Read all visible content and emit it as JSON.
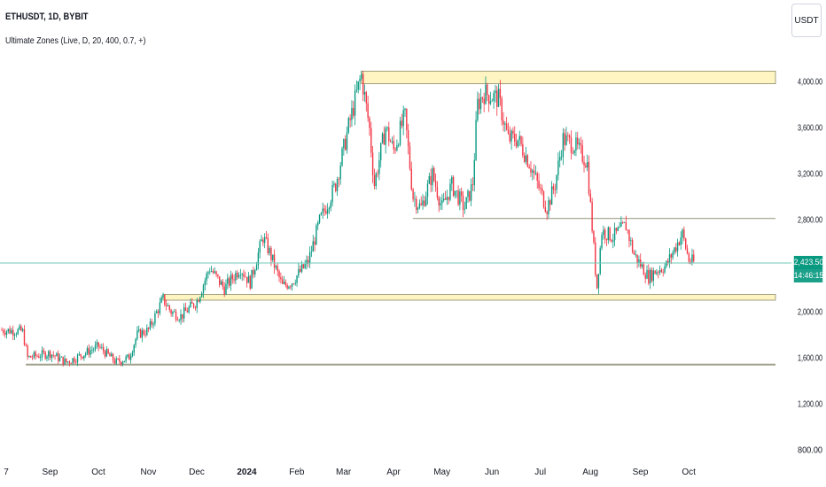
{
  "header": {
    "symbol_line": "ETHUSDT, 1D, BYBIT",
    "indicator_line": "Ultimate Zones (Live, D, 20, 400, 0.7, +)"
  },
  "toolbar": {
    "currency_label": "USDT"
  },
  "last_price": {
    "value": 2423.5,
    "label": "2,423.50",
    "countdown": "14:46:15",
    "color": "#089981"
  },
  "colors": {
    "up": "#089981",
    "down": "#f23645",
    "zone_fill": "#fff5c2",
    "zone_border": "#8a8a6a",
    "line": "#a09f8a",
    "price_line": "#6fc9b8"
  },
  "chart_data": {
    "type": "candlestick",
    "symbol": "ETHUSDT",
    "interval": "1D",
    "exchange": "BYBIT",
    "x_labels": [
      "7",
      "Sep",
      "Oct",
      "Nov",
      "Dec",
      "2024",
      "Feb",
      "Mar",
      "Apr",
      "May",
      "Jun",
      "Jul",
      "Aug",
      "Sep",
      "Oct"
    ],
    "y_ticks": [
      800,
      1200,
      1600,
      2000,
      2400,
      2800,
      3200,
      3600,
      4000
    ],
    "y_tick_labels": [
      "800.00",
      "1,200.00",
      "1,600.00",
      "2,000.00",
      "2,400.00",
      "2,800.00",
      "3,200.00",
      "3,600.00",
      "4,000.00"
    ],
    "ylim": [
      740,
      4230
    ],
    "zones": [
      {
        "type": "box",
        "start": "2024-03-12",
        "top": 4090,
        "bottom": 3980
      },
      {
        "type": "box",
        "start": "2023-11-10",
        "top": 2150,
        "bottom": 2100
      },
      {
        "type": "line",
        "start": "2024-04-13",
        "price": 2810
      },
      {
        "type": "line",
        "start": "2023-08-17",
        "price": 1540
      }
    ],
    "series": [
      {
        "name": "ETHUSDT",
        "points": [
          [
            "2023-08-01",
            1840
          ],
          [
            "2023-08-15",
            1830
          ],
          [
            "2023-08-17",
            1680
          ],
          [
            "2023-08-18",
            1600
          ],
          [
            "2023-09-01",
            1640
          ],
          [
            "2023-09-11",
            1560
          ],
          [
            "2023-09-20",
            1620
          ],
          [
            "2023-10-01",
            1700
          ],
          [
            "2023-10-12",
            1560
          ],
          [
            "2023-10-20",
            1600
          ],
          [
            "2023-10-25",
            1800
          ],
          [
            "2023-11-01",
            1840
          ],
          [
            "2023-11-10",
            2110
          ],
          [
            "2023-11-15",
            2000
          ],
          [
            "2023-11-21",
            1960
          ],
          [
            "2023-12-01",
            2090
          ],
          [
            "2023-12-09",
            2380
          ],
          [
            "2023-12-18",
            2200
          ],
          [
            "2023-12-28",
            2380
          ],
          [
            "2024-01-03",
            2250
          ],
          [
            "2024-01-11",
            2650
          ],
          [
            "2024-01-15",
            2520
          ],
          [
            "2024-01-23",
            2220
          ],
          [
            "2024-01-29",
            2260
          ],
          [
            "2024-02-08",
            2430
          ],
          [
            "2024-02-15",
            2780
          ],
          [
            "2024-02-25",
            3100
          ],
          [
            "2024-03-04",
            3600
          ],
          [
            "2024-03-12",
            4060
          ],
          [
            "2024-03-17",
            3600
          ],
          [
            "2024-03-20",
            3100
          ],
          [
            "2024-03-27",
            3600
          ],
          [
            "2024-04-01",
            3400
          ],
          [
            "2024-04-08",
            3700
          ],
          [
            "2024-04-13",
            3000
          ],
          [
            "2024-04-18",
            2900
          ],
          [
            "2024-04-25",
            3200
          ],
          [
            "2024-05-01",
            2900
          ],
          [
            "2024-05-07",
            3100
          ],
          [
            "2024-05-15",
            2900
          ],
          [
            "2024-05-20",
            3100
          ],
          [
            "2024-05-23",
            3800
          ],
          [
            "2024-05-27",
            3900
          ],
          [
            "2024-06-05",
            3850
          ],
          [
            "2024-06-11",
            3500
          ],
          [
            "2024-06-17",
            3500
          ],
          [
            "2024-06-24",
            3300
          ],
          [
            "2024-07-05",
            2900
          ],
          [
            "2024-07-10",
            3100
          ],
          [
            "2024-07-15",
            3500
          ],
          [
            "2024-07-22",
            3450
          ],
          [
            "2024-07-30",
            3300
          ],
          [
            "2024-08-05",
            2200
          ],
          [
            "2024-08-08",
            2700
          ],
          [
            "2024-08-15",
            2650
          ],
          [
            "2024-08-23",
            2750
          ],
          [
            "2024-08-28",
            2500
          ],
          [
            "2024-09-06",
            2300
          ],
          [
            "2024-09-10",
            2350
          ],
          [
            "2024-09-17",
            2400
          ],
          [
            "2024-09-27",
            2680
          ],
          [
            "2024-10-01",
            2450
          ],
          [
            "2024-10-05",
            2423.5
          ]
        ]
      }
    ]
  }
}
